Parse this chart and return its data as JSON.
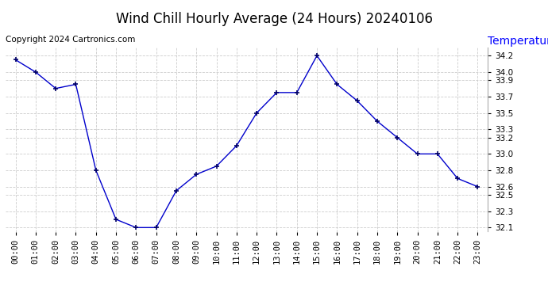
{
  "title": "Wind Chill Hourly Average (24 Hours) 20240106",
  "ylabel": "Temperature (°F)",
  "copyright": "Copyright 2024 Cartronics.com",
  "hours": [
    "00:00",
    "01:00",
    "02:00",
    "03:00",
    "04:00",
    "05:00",
    "06:00",
    "07:00",
    "08:00",
    "09:00",
    "10:00",
    "11:00",
    "12:00",
    "13:00",
    "14:00",
    "15:00",
    "16:00",
    "17:00",
    "18:00",
    "19:00",
    "20:00",
    "21:00",
    "22:00",
    "23:00"
  ],
  "values": [
    34.15,
    34.0,
    33.8,
    33.85,
    32.8,
    32.2,
    32.1,
    32.1,
    32.55,
    32.75,
    32.85,
    33.1,
    33.5,
    33.75,
    33.75,
    34.2,
    33.85,
    33.65,
    33.4,
    33.2,
    33.0,
    33.0,
    32.7,
    32.6
  ],
  "line_color": "#0000cc",
  "marker": "+",
  "marker_color": "#000066",
  "bg_color": "#ffffff",
  "grid_color": "#cccccc",
  "ylim_min": 32.05,
  "ylim_max": 34.3,
  "yticks": [
    32.1,
    32.3,
    32.5,
    32.6,
    32.8,
    33.0,
    33.2,
    33.3,
    33.5,
    33.7,
    33.9,
    34.0,
    34.2
  ],
  "title_fontsize": 12,
  "ylabel_fontsize": 10,
  "ylabel_color": "#0000ff",
  "copyright_fontsize": 7.5,
  "tick_fontsize": 7.5
}
